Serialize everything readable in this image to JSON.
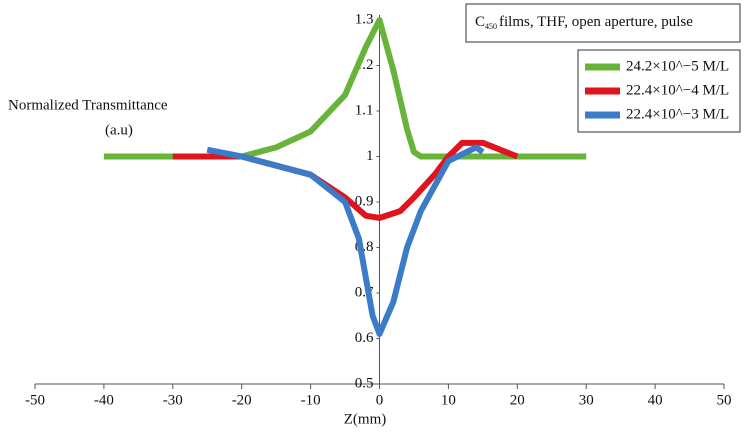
{
  "chart_data": {
    "type": "line",
    "title": [
      "C",
      "450",
      "films, THF,  open aperture, pulse"
    ],
    "y_label": [
      "Normalized Transmittance",
      "(a.u)"
    ],
    "x_label": "Z(mm)",
    "xlim": [
      -50,
      50
    ],
    "xticks": [
      -50,
      -40,
      -30,
      -20,
      -10,
      0,
      10,
      20,
      30,
      40,
      50
    ],
    "ylim": [
      0.5,
      1.3
    ],
    "yticks": [
      0.5,
      0.6,
      0.7,
      0.8,
      0.9,
      1,
      1.1,
      1.2,
      1.3
    ],
    "series": [
      {
        "name": "24.2×10^−5 M/L",
        "color": "#68b43a",
        "x": [
          -40,
          -30,
          -20,
          -15,
          -10,
          -5,
          -2,
          0,
          2,
          4,
          5,
          6,
          10,
          15,
          20,
          30
        ],
        "values": [
          1.0,
          1.0,
          1.0,
          1.02,
          1.055,
          1.135,
          1.24,
          1.3,
          1.19,
          1.06,
          1.01,
          1.0,
          1.0,
          1.0,
          1.0,
          1.0
        ]
      },
      {
        "name": "22.4×10^−4 M/L",
        "color": "#e0141c",
        "x": [
          -30,
          -20,
          -10,
          -5,
          -2,
          0,
          3,
          5,
          8,
          10,
          12,
          15,
          20
        ],
        "values": [
          1.0,
          1.0,
          0.96,
          0.91,
          0.87,
          0.865,
          0.88,
          0.91,
          0.96,
          1.0,
          1.03,
          1.03,
          1.0
        ]
      },
      {
        "name": "22.4×10^−3 M/L",
        "color": "#3a7cc8",
        "x": [
          -25,
          -20,
          -10,
          -5,
          -3,
          -1,
          0,
          2,
          4,
          6,
          10,
          14,
          15
        ],
        "values": [
          1.015,
          1.0,
          0.96,
          0.9,
          0.82,
          0.65,
          0.61,
          0.68,
          0.8,
          0.88,
          0.99,
          1.02,
          1.01
        ]
      }
    ]
  }
}
